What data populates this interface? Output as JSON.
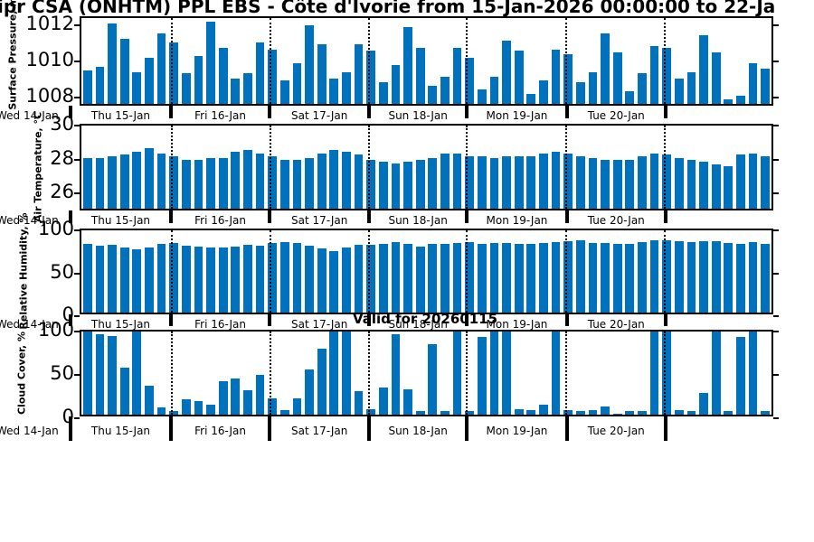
{
  "title": "ipr CSA (ONHTM) PPL EBS  - Côte d'Ivorie from 15-Jan-2026 00:00:00 to 22-Ja",
  "annotation": {
    "valid_label": "Valid for 20260115"
  },
  "x_axis": {
    "leading_label": "Wed 14-Jan",
    "day_labels": [
      "Thu 15-Jan",
      "Fri 16-Jan",
      "Sat 17-Jan",
      "Sun 18-Jan",
      "Mon 19-Jan",
      "Tue 20-Jan"
    ]
  },
  "colors": {
    "bar": "#0072BD",
    "axis": "#000000",
    "background": "#ffffff"
  },
  "chart_data": [
    {
      "type": "bar",
      "ylabel": "Surface Pressure, mb",
      "yticks": [
        1008,
        1010,
        1012
      ],
      "ylim": [
        1007.45,
        1012.4
      ],
      "grid": "day-boundary-dotted",
      "values": [
        1009.4,
        1009.6,
        1012.1,
        1011.2,
        1009.3,
        1010.1,
        1011.5,
        1011.0,
        1009.2,
        1010.2,
        1012.2,
        1010.7,
        1008.9,
        1009.2,
        1011.0,
        1010.6,
        1008.8,
        1009.8,
        1012.0,
        1010.9,
        1008.9,
        1009.3,
        1010.9,
        1010.5,
        1008.7,
        1009.7,
        1011.9,
        1010.7,
        1008.5,
        1009.0,
        1010.7,
        1010.1,
        1008.3,
        1009.0,
        1011.1,
        1010.5,
        1008.0,
        1008.8,
        1010.6,
        1010.3,
        1008.7,
        1009.3,
        1011.5,
        1010.4,
        1008.2,
        1009.2,
        1010.8,
        1010.7,
        1008.9,
        1009.3,
        1011.4,
        1010.4,
        1007.7,
        1007.9,
        1009.8,
        1009.5
      ]
    },
    {
      "type": "bar",
      "ylabel": "Air Temperature, °C",
      "yticks": [
        26,
        28,
        30
      ],
      "ylim": [
        24.9,
        30
      ],
      "grid": "day-boundary-dotted",
      "values": [
        28.0,
        28.0,
        28.1,
        28.2,
        28.4,
        28.6,
        28.3,
        28.1,
        27.9,
        27.9,
        28.0,
        28.0,
        28.4,
        28.5,
        28.3,
        28.1,
        27.9,
        27.9,
        28.0,
        28.3,
        28.5,
        28.4,
        28.2,
        27.9,
        27.8,
        27.7,
        27.8,
        27.9,
        28.0,
        28.3,
        28.3,
        28.1,
        28.1,
        28.0,
        28.1,
        28.1,
        28.1,
        28.3,
        28.4,
        28.3,
        28.1,
        28.0,
        27.9,
        27.9,
        27.9,
        28.1,
        28.3,
        28.2,
        28.0,
        27.9,
        27.8,
        27.6,
        27.5,
        28.2,
        28.3,
        28.1
      ]
    },
    {
      "type": "bar",
      "ylabel": "Relative Humidity, %",
      "yticks": [
        0,
        50,
        100
      ],
      "ylim": [
        0,
        100
      ],
      "grid": "day-boundary-dotted",
      "values": [
        83,
        81,
        82,
        79,
        77,
        79,
        83,
        85,
        81,
        80,
        79,
        79,
        80,
        82,
        81,
        85,
        86,
        85,
        81,
        78,
        75,
        79,
        82,
        82,
        84,
        86,
        84,
        80,
        84,
        84,
        85,
        86,
        84,
        85,
        85,
        84,
        84,
        85,
        86,
        87,
        88,
        85,
        85,
        84,
        83,
        86,
        88,
        88,
        87,
        86,
        87,
        87,
        85,
        84,
        86,
        84
      ]
    },
    {
      "type": "bar",
      "ylabel": "Cloud Cover, %",
      "yticks": [
        0,
        50,
        100
      ],
      "ylim": [
        0,
        100
      ],
      "grid": "day-boundary-dotted",
      "values": [
        100,
        97,
        95,
        56,
        100,
        35,
        9,
        4,
        19,
        16,
        12,
        40,
        43,
        29,
        48,
        20,
        5,
        20,
        54,
        79,
        100,
        100,
        28,
        6,
        33,
        97,
        30,
        4,
        85,
        4,
        100,
        4,
        93,
        100,
        100,
        7,
        5,
        12,
        100,
        5,
        4,
        5,
        10,
        1,
        4,
        4,
        100,
        100,
        5,
        4,
        26,
        100,
        4,
        93,
        100,
        4
      ]
    }
  ]
}
